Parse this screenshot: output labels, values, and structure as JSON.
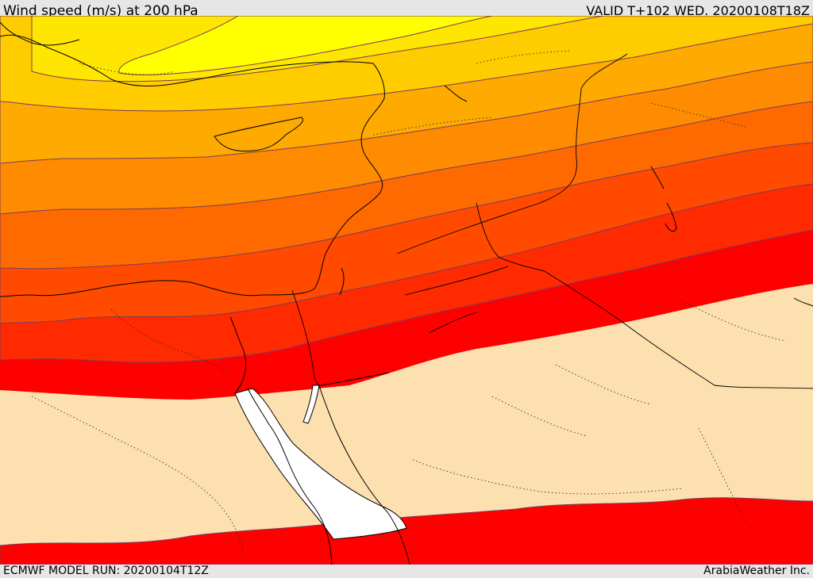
{
  "header": {
    "title": "Wind speed (m/s) at 200 hPa",
    "valid": "VALID T+102 WED. 20200108T18Z"
  },
  "footer": {
    "model_run": "ECMWF MODEL RUN: 20200104T12Z",
    "credit": "ArabiaWeather Inc."
  },
  "colors": {
    "background": "#e6e6e6",
    "low_speed": "#fce0b0",
    "sea_gap": "#ffffff",
    "bands": [
      "#ffff00",
      "#ffe600",
      "#ffcc00",
      "#ffaa00",
      "#ff8c00",
      "#ff6a00",
      "#ff4a00",
      "#ff2a00",
      "#ff0000"
    ],
    "isotach_line": "#7a3c5c"
  }
}
